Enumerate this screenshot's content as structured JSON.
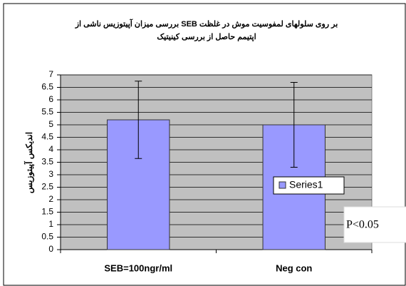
{
  "chart_data": {
    "type": "bar",
    "title": [
      "بررسی میزان آپیتوزیس ناشی از SEB بر روی سلولهای لمفوسیت موش در غلظت",
      "اپتیمم حاصل از بررسی کینیتیک"
    ],
    "ylabel": "اندیکس آپیتوزیس",
    "categories": [
      "SEB=100ngr/ml",
      "Neg con"
    ],
    "series": [
      {
        "name": "Series1",
        "color": "#9999ff",
        "values": [
          5.2,
          5.0
        ],
        "errors": [
          1.55,
          1.7
        ]
      }
    ],
    "ylim": [
      0,
      7
    ],
    "yticks": [
      0,
      0.5,
      1,
      1.5,
      2,
      2.5,
      3,
      3.5,
      4,
      4.5,
      5,
      5.5,
      6,
      6.5,
      7
    ],
    "grid": true,
    "legend": "right",
    "annotation": "P<0.05"
  }
}
